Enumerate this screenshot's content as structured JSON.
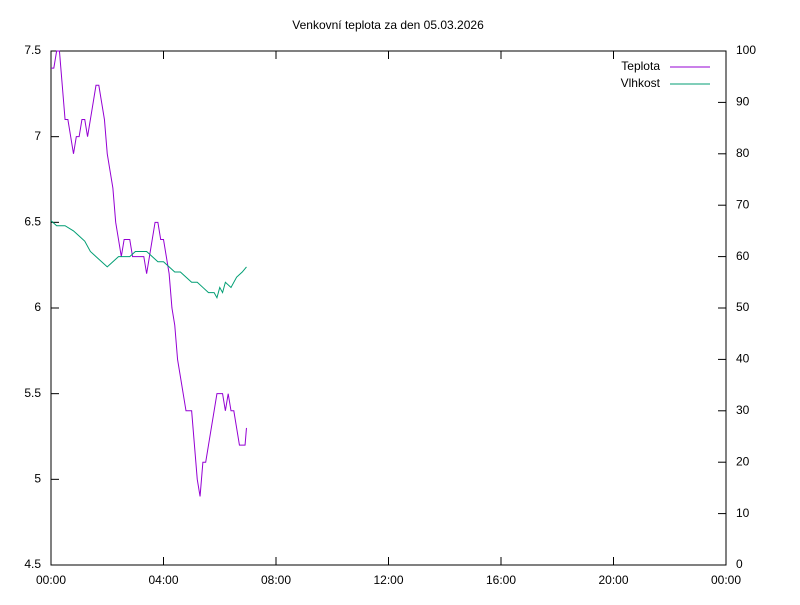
{
  "chart_data": {
    "type": "line",
    "title": "Venkovní teplota za den 05.03.2026",
    "xlim": [
      0,
      24
    ],
    "xticks": [
      {
        "value": 0,
        "label": "00:00"
      },
      {
        "value": 4,
        "label": "04:00"
      },
      {
        "value": 8,
        "label": "08:00"
      },
      {
        "value": 12,
        "label": "12:00"
      },
      {
        "value": 16,
        "label": "16:00"
      },
      {
        "value": 20,
        "label": "20:00"
      },
      {
        "value": 24,
        "label": "00:00"
      }
    ],
    "ylim": [
      4.5,
      7.5
    ],
    "yticks": [
      4.5,
      5,
      5.5,
      6,
      6.5,
      7,
      7.5
    ],
    "y2lim": [
      0,
      100
    ],
    "y2ticks": [
      0,
      10,
      20,
      30,
      40,
      50,
      60,
      70,
      80,
      90,
      100
    ],
    "grid": false,
    "legend": "top-right",
    "series": [
      {
        "name": "Teplota",
        "color": "#9400d3",
        "x": [
          0,
          0.1,
          0.2,
          0.3,
          0.4,
          0.5,
          0.6,
          0.7,
          0.8,
          0.9,
          1,
          1.1,
          1.2,
          1.3,
          1.4,
          1.5,
          1.6,
          1.7,
          1.8,
          1.9,
          2,
          2.1,
          2.2,
          2.3,
          2.4,
          2.5,
          2.6,
          2.7,
          2.8,
          2.9,
          3,
          3.1,
          3.2,
          3.3,
          3.4,
          3.5,
          3.6,
          3.7,
          3.8,
          3.9,
          4,
          4.1,
          4.2,
          4.3,
          4.4,
          4.5,
          4.6,
          4.7,
          4.8,
          4.9,
          5,
          5.1,
          5.2,
          5.3,
          5.4,
          5.5,
          5.6,
          5.7,
          5.8,
          5.9,
          6,
          6.1,
          6.2,
          6.3,
          6.4,
          6.5,
          6.6,
          6.7,
          6.8,
          6.9,
          6.95
        ],
        "values": [
          7.4,
          7.4,
          7.5,
          7.5,
          7.3,
          7.1,
          7.1,
          7.0,
          6.9,
          7.0,
          7.0,
          7.1,
          7.1,
          7.0,
          7.1,
          7.2,
          7.3,
          7.3,
          7.2,
          7.1,
          6.9,
          6.8,
          6.7,
          6.5,
          6.4,
          6.3,
          6.4,
          6.4,
          6.4,
          6.3,
          6.3,
          6.3,
          6.3,
          6.3,
          6.2,
          6.3,
          6.4,
          6.5,
          6.5,
          6.4,
          6.4,
          6.3,
          6.2,
          6.0,
          5.9,
          5.7,
          5.6,
          5.5,
          5.4,
          5.4,
          5.4,
          5.2,
          5.0,
          4.9,
          5.1,
          5.1,
          5.2,
          5.3,
          5.4,
          5.5,
          5.5,
          5.5,
          5.4,
          5.5,
          5.4,
          5.4,
          5.3,
          5.2,
          5.2,
          5.2,
          5.3
        ]
      },
      {
        "name": "Vlhkost",
        "color": "#009e73",
        "axis": "y2",
        "x": [
          0,
          0.2,
          0.5,
          0.8,
          1,
          1.2,
          1.4,
          1.6,
          1.8,
          2,
          2.2,
          2.4,
          2.6,
          2.8,
          3,
          3.2,
          3.4,
          3.6,
          3.8,
          4,
          4.2,
          4.4,
          4.6,
          4.8,
          5,
          5.2,
          5.4,
          5.6,
          5.8,
          5.9,
          6,
          6.1,
          6.2,
          6.4,
          6.6,
          6.8,
          6.95
        ],
        "values": [
          67,
          66,
          66,
          65,
          64,
          63,
          61,
          60,
          59,
          58,
          59,
          60,
          60,
          60,
          61,
          61,
          61,
          60,
          59,
          59,
          58,
          57,
          57,
          56,
          55,
          55,
          54,
          53,
          53,
          52,
          54,
          53,
          55,
          54,
          56,
          57,
          58
        ]
      }
    ]
  }
}
